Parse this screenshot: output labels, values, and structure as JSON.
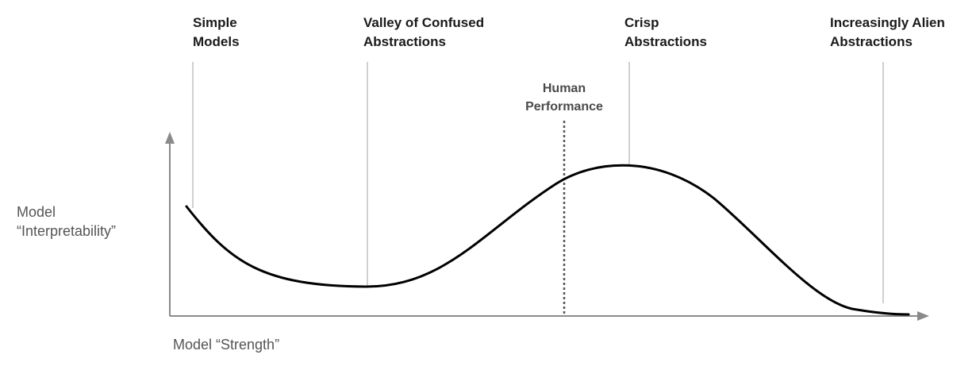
{
  "diagram": {
    "regions": [
      {
        "id": "simple",
        "line1": "Simple",
        "line2": "Models"
      },
      {
        "id": "valley",
        "line1": "Valley of Confused",
        "line2": "Abstractions"
      },
      {
        "id": "crisp",
        "line1": "Crisp",
        "line2": "Abstractions"
      },
      {
        "id": "alien",
        "line1": "Increasingly Alien",
        "line2": "Abstractions"
      }
    ],
    "marker": {
      "line1": "Human",
      "line2": "Performance"
    },
    "y_axis_label": {
      "line1": "Model",
      "line2": "“Interpretability”"
    },
    "x_axis_label": "Model “Strength”",
    "colors": {
      "curve": "#000000",
      "guide_lines": "#d0d0d0",
      "axes": "#8a8a8a",
      "marker_line": "#555555",
      "label_text": "#1a1a1a"
    }
  }
}
